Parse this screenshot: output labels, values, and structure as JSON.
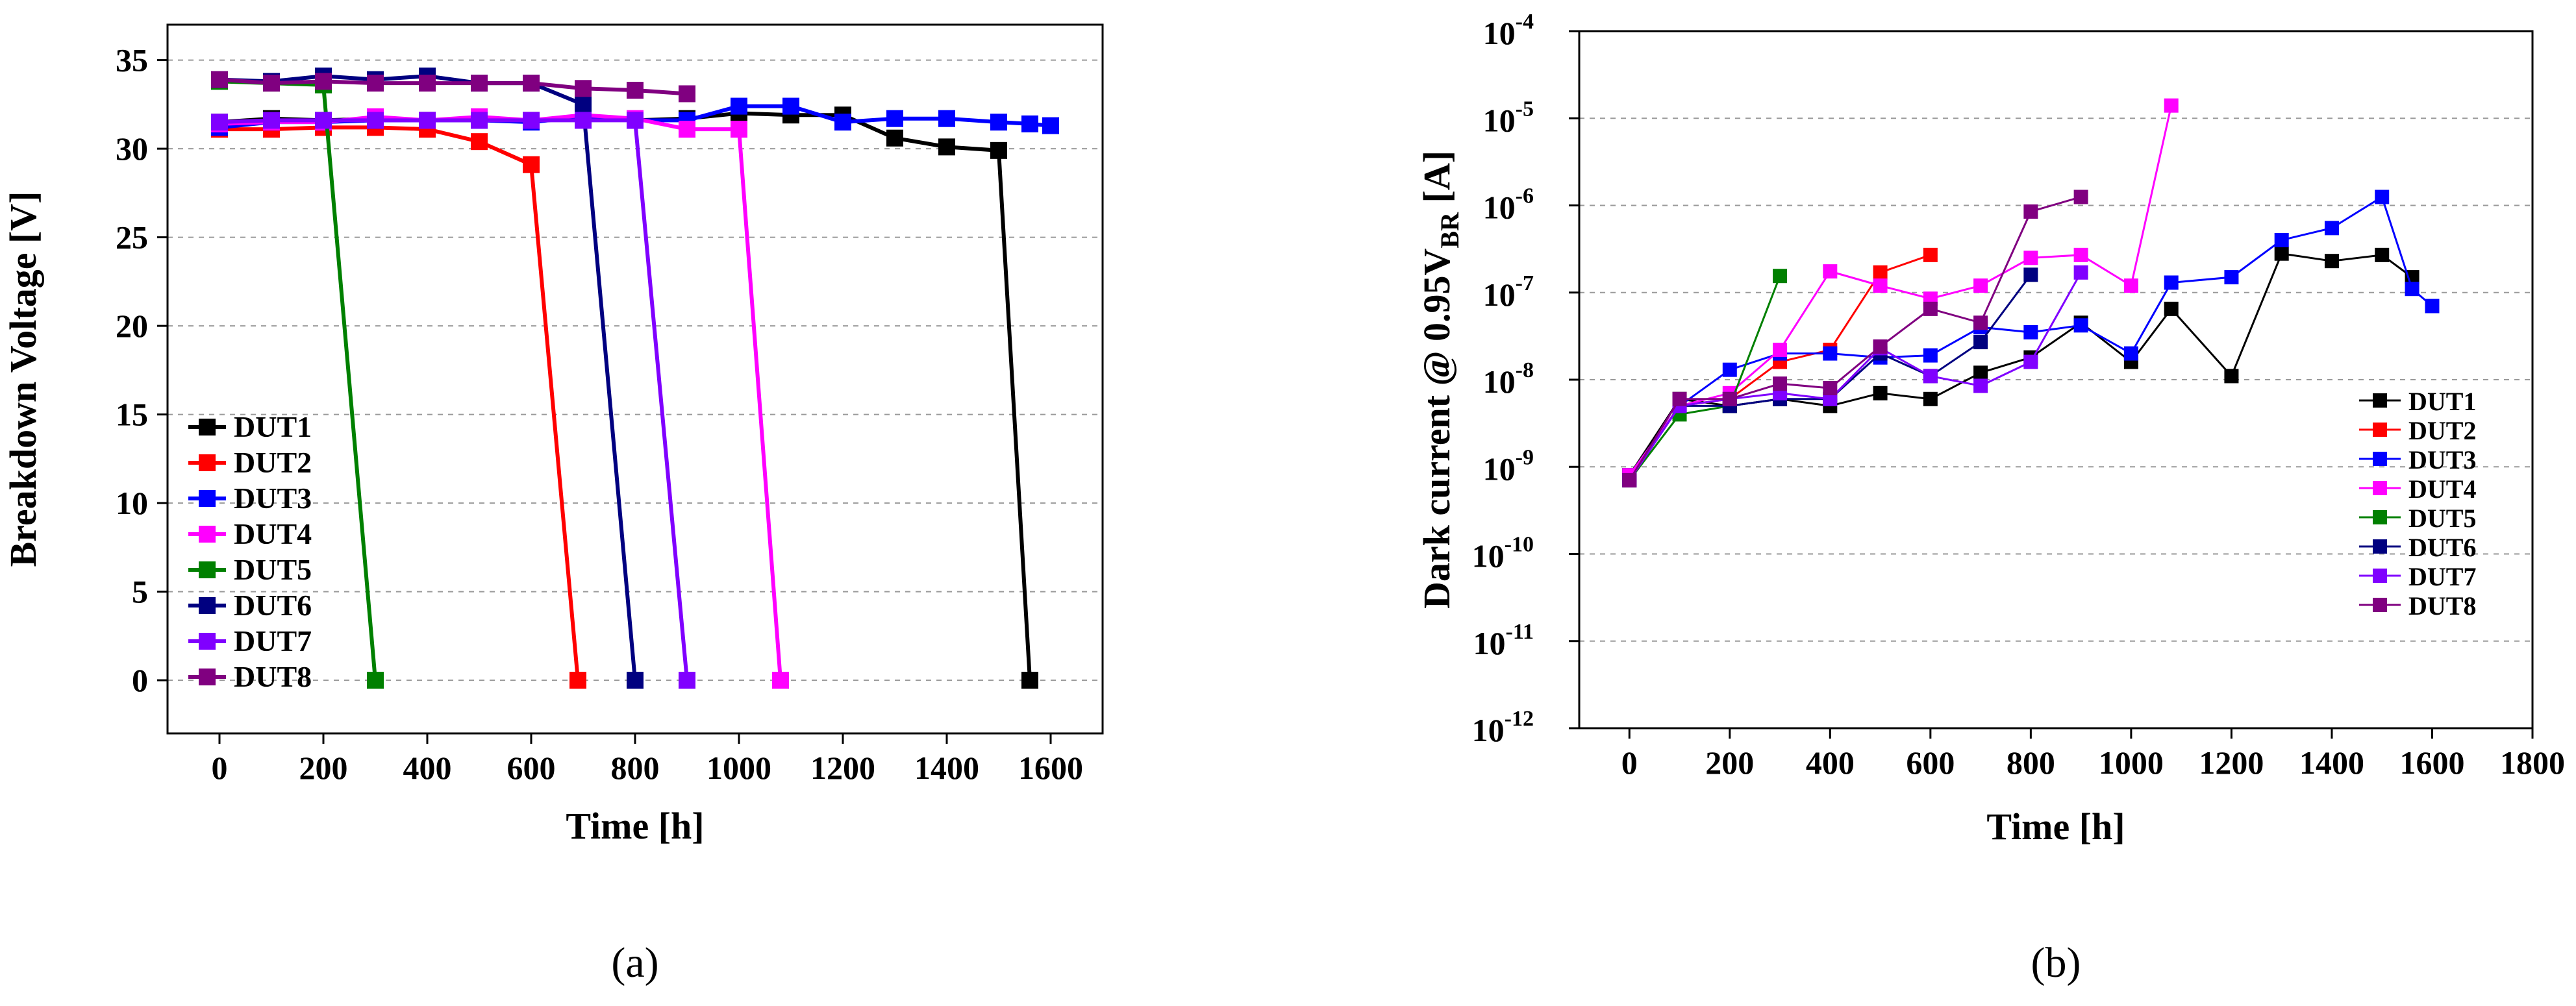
{
  "colors": {
    "DUT1": "#000000",
    "DUT2": "#ff0000",
    "DUT3": "#0000ff",
    "DUT4": "#ff00ff",
    "DUT5": "#008000",
    "DUT6": "#000080",
    "DUT7": "#8000ff",
    "DUT8": "#800080"
  },
  "chart_data": [
    {
      "type": "line",
      "panel_label": "(a)",
      "xlabel": "Time [h]",
      "ylabel": "Breakdown Voltage [V]",
      "xlim": [
        -100,
        1700
      ],
      "ylim": [
        -3,
        37
      ],
      "xticks": [
        0,
        200,
        400,
        600,
        800,
        1000,
        1200,
        1400,
        1600
      ],
      "yticks": [
        0,
        5,
        10,
        15,
        20,
        25,
        30,
        35
      ],
      "grid": "horizontal dashed",
      "legend": "bottom-left",
      "series": [
        {
          "name": "DUT1",
          "x": [
            0,
            100,
            200,
            300,
            400,
            500,
            600,
            700,
            800,
            900,
            1000,
            1100,
            1200,
            1300,
            1400,
            1500,
            1560
          ],
          "y": [
            31.5,
            31.7,
            31.6,
            31.7,
            31.6,
            31.7,
            31.6,
            31.7,
            31.6,
            31.7,
            32.0,
            31.9,
            31.9,
            30.6,
            30.1,
            29.9,
            0
          ]
        },
        {
          "name": "DUT2",
          "x": [
            0,
            100,
            200,
            300,
            400,
            500,
            600,
            690
          ],
          "y": [
            31.1,
            31.1,
            31.2,
            31.2,
            31.1,
            30.4,
            29.1,
            0
          ]
        },
        {
          "name": "DUT3",
          "x": [
            0,
            100,
            200,
            300,
            400,
            500,
            600,
            700,
            800,
            900,
            1000,
            1100,
            1200,
            1300,
            1400,
            1500,
            1560,
            1600
          ],
          "y": [
            31.2,
            31.5,
            31.5,
            31.6,
            31.6,
            31.6,
            31.5,
            31.8,
            31.6,
            31.6,
            32.4,
            32.4,
            31.5,
            31.7,
            31.7,
            31.5,
            31.4,
            31.3
          ]
        },
        {
          "name": "DUT4",
          "x": [
            0,
            100,
            200,
            300,
            400,
            500,
            600,
            700,
            800,
            900,
            1000,
            1080
          ],
          "y": [
            31.4,
            31.5,
            31.5,
            31.8,
            31.6,
            31.8,
            31.6,
            31.9,
            31.7,
            31.1,
            31.1,
            0
          ]
        },
        {
          "name": "DUT5",
          "x": [
            0,
            100,
            200,
            300
          ],
          "y": [
            33.8,
            33.7,
            33.6,
            0
          ]
        },
        {
          "name": "DUT6",
          "x": [
            0,
            100,
            200,
            300,
            400,
            500,
            600,
            700,
            800
          ],
          "y": [
            33.9,
            33.8,
            34.1,
            33.9,
            34.1,
            33.7,
            33.7,
            32.5,
            0
          ]
        },
        {
          "name": "DUT7",
          "x": [
            0,
            100,
            200,
            300,
            400,
            500,
            600,
            700,
            800,
            900
          ],
          "y": [
            31.5,
            31.6,
            31.6,
            31.6,
            31.6,
            31.6,
            31.6,
            31.6,
            31.6,
            0
          ]
        },
        {
          "name": "DUT8",
          "x": [
            0,
            100,
            200,
            300,
            400,
            500,
            600,
            700,
            800,
            900
          ],
          "y": [
            33.9,
            33.7,
            33.8,
            33.7,
            33.7,
            33.7,
            33.7,
            33.4,
            33.3,
            33.1
          ]
        }
      ]
    },
    {
      "type": "line",
      "panel_label": "(b)",
      "xlabel": "Time [h]",
      "ylabel": "Dark current @ 0.95V",
      "ylabel_subscript": "BR",
      "ylabel_suffix": " [A]",
      "yscale": "log",
      "xlim": [
        -100,
        1800
      ],
      "ylim": [
        1e-12,
        0.0001
      ],
      "xticks": [
        0,
        200,
        400,
        600,
        800,
        1000,
        1200,
        1400,
        1600,
        1800
      ],
      "yticks": [
        {
          "value": 1e-12,
          "base": "10",
          "exp": "-12"
        },
        {
          "value": 1e-11,
          "base": "10",
          "exp": "-11"
        },
        {
          "value": 1e-10,
          "base": "10",
          "exp": "-10"
        },
        {
          "value": 1e-09,
          "base": "10",
          "exp": "-9"
        },
        {
          "value": 1e-08,
          "base": "10",
          "exp": "-8"
        },
        {
          "value": 1e-07,
          "base": "10",
          "exp": "-7"
        },
        {
          "value": 1e-06,
          "base": "10",
          "exp": "-6"
        },
        {
          "value": 1e-05,
          "base": "10",
          "exp": "-5"
        },
        {
          "value": 0.0001,
          "base": "10",
          "exp": "-4"
        }
      ],
      "grid": "horizontal dashed",
      "legend": "bottom-right",
      "series": [
        {
          "name": "DUT1",
          "x": [
            0,
            100,
            200,
            300,
            400,
            500,
            600,
            700,
            800,
            900,
            1000,
            1080,
            1200,
            1300,
            1400,
            1500,
            1560
          ],
          "y": [
            8e-10,
            6e-09,
            5e-09,
            6e-09,
            5e-09,
            7e-09,
            6e-09,
            1.2e-08,
            1.8e-08,
            4.5e-08,
            1.6e-08,
            6.5e-08,
            1.1e-08,
            2.8e-07,
            2.3e-07,
            2.7e-07,
            1.5e-07
          ]
        },
        {
          "name": "DUT2",
          "x": [
            0,
            100,
            200,
            300,
            400,
            500,
            600
          ],
          "y": [
            8e-10,
            5e-09,
            6e-09,
            1.6e-08,
            2.2e-08,
            1.7e-07,
            2.7e-07
          ]
        },
        {
          "name": "DUT3",
          "x": [
            0,
            100,
            200,
            300,
            400,
            500,
            600,
            700,
            800,
            900,
            1000,
            1080,
            1200,
            1300,
            1400,
            1500,
            1560,
            1600
          ],
          "y": [
            8e-10,
            5e-09,
            1.3e-08,
            2e-08,
            2e-08,
            1.8e-08,
            1.9e-08,
            4e-08,
            3.5e-08,
            4.2e-08,
            2e-08,
            1.3e-07,
            1.5e-07,
            4e-07,
            5.5e-07,
            1.25e-06,
            1.1e-07,
            7e-08
          ]
        },
        {
          "name": "DUT4",
          "x": [
            0,
            100,
            200,
            300,
            400,
            500,
            600,
            700,
            800,
            900,
            1000,
            1080
          ],
          "y": [
            8e-10,
            5e-09,
            7e-09,
            2.2e-08,
            1.75e-07,
            1.2e-07,
            8.5e-08,
            1.2e-07,
            2.5e-07,
            2.7e-07,
            1.2e-07,
            1.4e-05
          ]
        },
        {
          "name": "DUT5",
          "x": [
            0,
            100,
            200,
            300
          ],
          "y": [
            7e-10,
            4e-09,
            5e-09,
            1.55e-07
          ]
        },
        {
          "name": "DUT6",
          "x": [
            0,
            100,
            200,
            300,
            400,
            500,
            600,
            700,
            800
          ],
          "y": [
            7e-10,
            5e-09,
            5e-09,
            6e-09,
            6e-09,
            2e-08,
            1.1e-08,
            2.7e-08,
            1.6e-07
          ]
        },
        {
          "name": "DUT7",
          "x": [
            0,
            100,
            200,
            300,
            400,
            500,
            600,
            700,
            800,
            900
          ],
          "y": [
            7e-10,
            5e-09,
            6e-09,
            7e-09,
            6e-09,
            2.3e-08,
            1.1e-08,
            8.5e-09,
            1.6e-08,
            1.7e-07
          ]
        },
        {
          "name": "DUT8",
          "x": [
            0,
            100,
            200,
            300,
            400,
            500,
            600,
            700,
            800,
            900
          ],
          "y": [
            7e-10,
            6e-09,
            6e-09,
            9e-09,
            8e-09,
            2.4e-08,
            6.5e-08,
            4.5e-08,
            8.5e-07,
            1.25e-06
          ]
        }
      ]
    }
  ]
}
